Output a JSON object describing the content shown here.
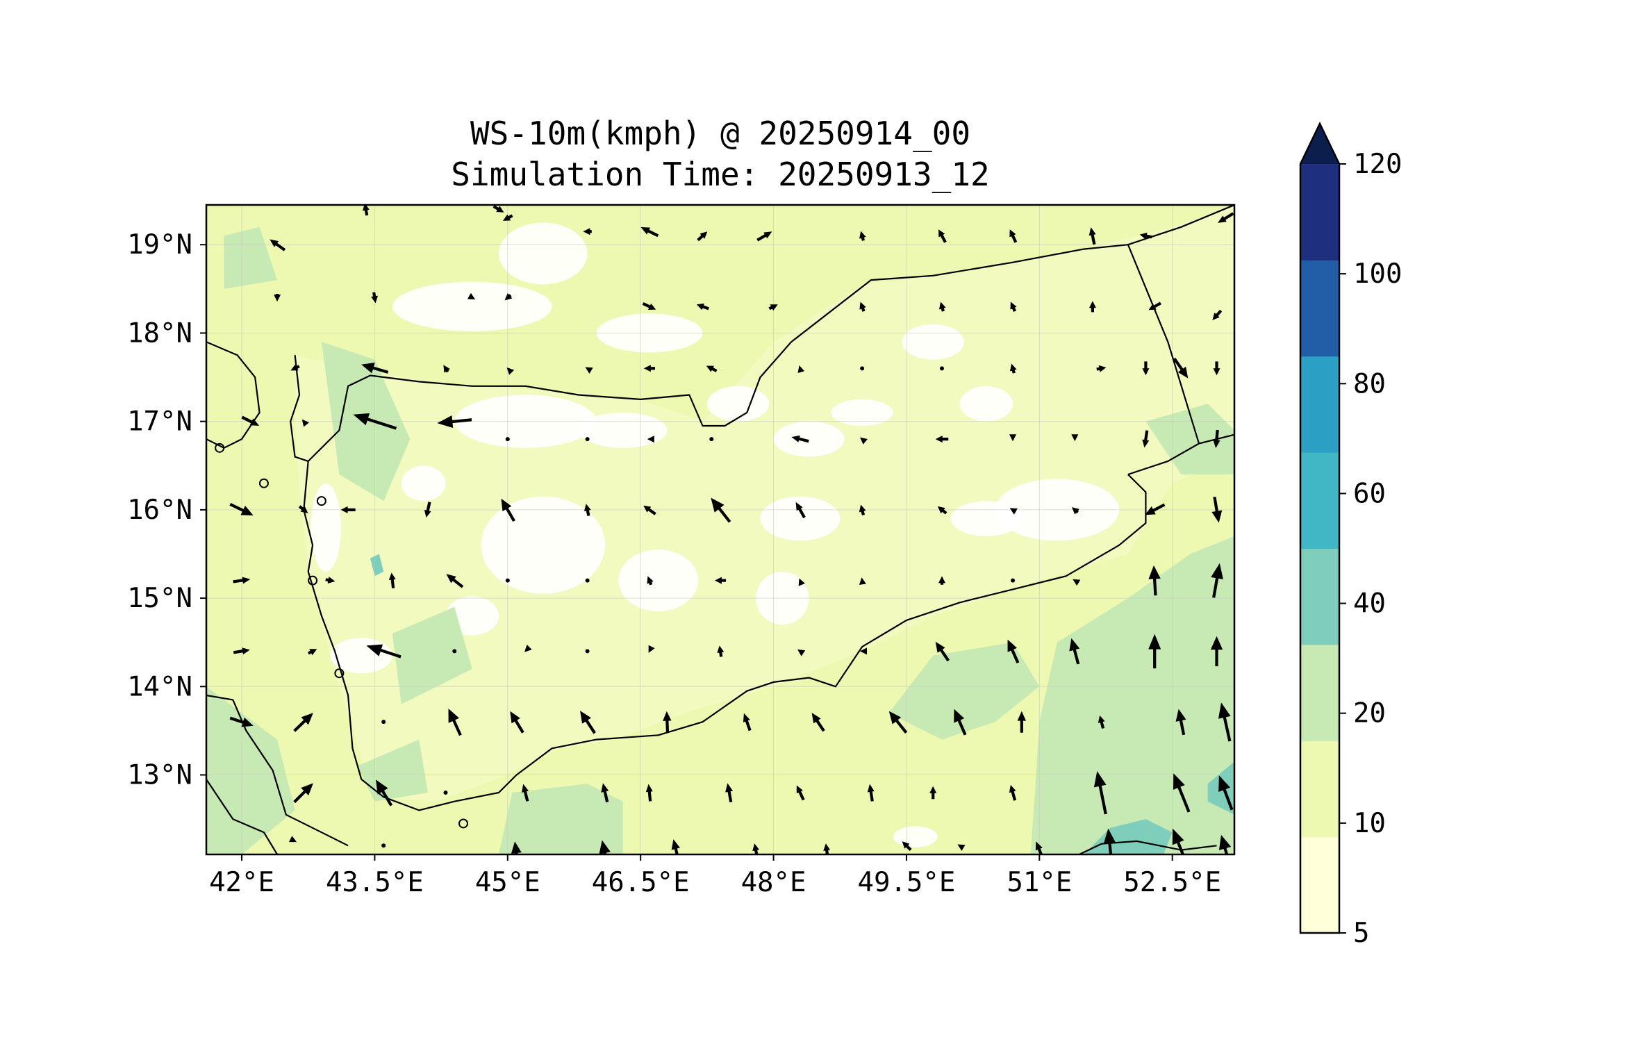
{
  "title": {
    "line1": "WS-10m(kmph) @ 20250914_00",
    "line2": "Simulation Time: 20250913_12"
  },
  "map": {
    "lon_range": [
      41.6,
      53.2
    ],
    "lat_range": [
      12.1,
      19.45
    ],
    "lon_ticks": [
      {
        "value": 42.0,
        "label": "42°E"
      },
      {
        "value": 43.5,
        "label": "43.5°E"
      },
      {
        "value": 45.0,
        "label": "45°E"
      },
      {
        "value": 46.5,
        "label": "46.5°E"
      },
      {
        "value": 48.0,
        "label": "48°E"
      },
      {
        "value": 49.5,
        "label": "49.5°E"
      },
      {
        "value": 51.0,
        "label": "51°E"
      },
      {
        "value": 52.5,
        "label": "52.5°E"
      }
    ],
    "lat_ticks": [
      {
        "value": 19,
        "label": "19°N"
      },
      {
        "value": 18,
        "label": "18°N"
      },
      {
        "value": 17,
        "label": "17°N"
      },
      {
        "value": 16,
        "label": "16°N"
      },
      {
        "value": 15,
        "label": "15°N"
      },
      {
        "value": 14,
        "label": "14°N"
      },
      {
        "value": 13,
        "label": "13°N"
      }
    ],
    "colors": {
      "ocean_base": "#edf8b1",
      "land_base": "#f2fac0",
      "calm": "#ffffff",
      "level_10_20": "#edf8b1",
      "level_20_40": "#c7e9b4",
      "level_40_60": "#7fcdbb",
      "coast_line": "#000000",
      "arrow": "#000000"
    }
  },
  "colorbar": {
    "levels": [
      5,
      10,
      20,
      40,
      60,
      80,
      100,
      120
    ],
    "labels": [
      "5",
      "10",
      "20",
      "40",
      "60",
      "80",
      "100",
      "120"
    ],
    "colors": [
      "#ffffd9",
      "#edf8b1",
      "#c7e9b4",
      "#7fcdbb",
      "#41b6c4",
      "#2c9fc4",
      "#225ea8",
      "#1f2f7f"
    ],
    "extend_color": "#0b1f4f",
    "extend": "max"
  }
}
